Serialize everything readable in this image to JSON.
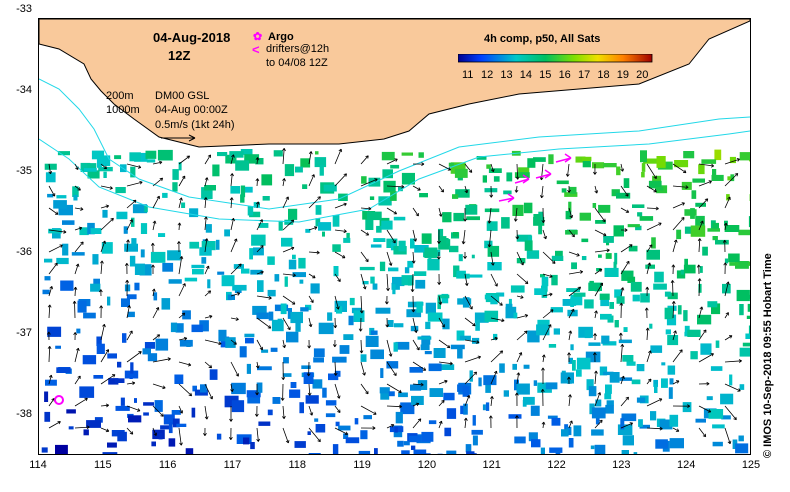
{
  "map": {
    "date": "04-Aug-2018",
    "hour": "12Z",
    "argo_label": "Argo",
    "drifters_label": "drifters@12h",
    "drifters_to": "to 04/08 12Z",
    "contour_200": "200m",
    "contour_1000": "1000m",
    "product": "DM00 GSL",
    "product_time": "04-Aug 00:00Z",
    "scale_label": "0.5m/s (1kt 24h)",
    "colorbar_title": "4h comp, p50, All Sats",
    "colorbar_ticks": [
      "11",
      "12",
      "13",
      "14",
      "15",
      "16",
      "17",
      "18",
      "19",
      "20"
    ],
    "colorbar_range": [
      11,
      20
    ],
    "lon_ticks": [
      "114",
      "115",
      "116",
      "117",
      "118",
      "119",
      "120",
      "121",
      "122",
      "123",
      "124",
      "125"
    ],
    "lat_ticks": [
      "-33",
      "-34",
      "-35",
      "-36",
      "-37",
      "-38"
    ],
    "lon_range": [
      114,
      125
    ],
    "lat_range": [
      -38.5,
      -33.1
    ],
    "credit": "© IMOS 10-Sep-2018 09:55 Hobart Time",
    "colors": {
      "land": "#f9c99b",
      "contour": "#22d8e8",
      "argo": "#ff00ff",
      "drifter": "#ff00ff"
    }
  }
}
